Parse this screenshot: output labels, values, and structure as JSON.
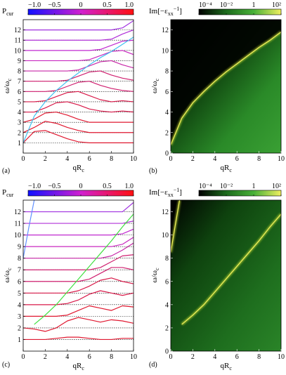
{
  "chart_data": [
    {
      "type": "line",
      "panel_label": "(a)",
      "xlabel": [
        {
          "text": "qR"
        },
        {
          "text": "c",
          "sub": true
        }
      ],
      "ylabel": [
        {
          "text": "ω/ω"
        },
        {
          "text": "c",
          "sub": true
        }
      ],
      "xlim": [
        0,
        10
      ],
      "ylim": [
        0,
        13
      ],
      "xticks": [
        0,
        2,
        4,
        6,
        8,
        10
      ],
      "yticks": [
        1,
        2,
        3,
        4,
        5,
        6,
        7,
        8,
        9,
        10,
        11,
        12
      ],
      "colorbar": {
        "label": [
          {
            "text": "P"
          },
          {
            "text": "cur",
            "sub": true
          }
        ],
        "lim": [
          -1,
          1
        ],
        "log": false,
        "ticks": [
          {
            "value": -1,
            "label": "−1.0"
          },
          {
            "value": -0.5,
            "label": "−0.5"
          },
          0,
          0.5,
          {
            "value": 1,
            "label": "1.0"
          }
        ],
        "colors": [
          "#1010ff",
          "#d020d0",
          "#ff1010"
        ]
      },
      "hlines": [
        1,
        2,
        3,
        4,
        5,
        6,
        7,
        8,
        9,
        10,
        11,
        12
      ],
      "x": [
        0,
        1,
        2,
        3,
        4,
        5,
        6,
        7,
        8,
        9,
        10
      ],
      "series": [
        {
          "color": "#e01830",
          "values": [
            1.0,
            2.1,
            2.2,
            1.8,
            1.4,
            1.1,
            1.0,
            1.0,
            1.0,
            1.0,
            1.0
          ]
        },
        {
          "color": "#e01830",
          "values": [
            2.0,
            2.5,
            3.1,
            2.9,
            2.5,
            2.2,
            2.0,
            2.0,
            2.0,
            2.0,
            2.0
          ]
        },
        {
          "color": "#e01830",
          "values": [
            3.0,
            3.3,
            3.9,
            4.0,
            3.7,
            3.3,
            3.0,
            3.0,
            3.0,
            3.0,
            3.0
          ]
        },
        {
          "color": "#d81848",
          "values": [
            4.0,
            4.0,
            4.4,
            4.9,
            5.0,
            4.7,
            4.3,
            4.1,
            4.0,
            4.1,
            4.0
          ]
        },
        {
          "color": "#d81848",
          "values": [
            5.0,
            5.0,
            5.1,
            5.5,
            5.9,
            6.0,
            5.6,
            5.2,
            5.0,
            5.1,
            5.0
          ]
        },
        {
          "color": "#d02070",
          "values": [
            6.0,
            6.0,
            6.0,
            6.1,
            6.5,
            6.9,
            7.0,
            6.6,
            6.3,
            6.1,
            6.0
          ]
        },
        {
          "color": "#d02070",
          "values": [
            7.0,
            7.0,
            7.0,
            7.0,
            7.1,
            7.5,
            7.9,
            8.0,
            7.6,
            7.3,
            7.1
          ]
        },
        {
          "color": "#c828a8",
          "values": [
            8.0,
            8.0,
            8.0,
            8.0,
            8.0,
            8.1,
            8.5,
            8.9,
            9.0,
            8.6,
            8.3
          ]
        },
        {
          "color": "#c828c0",
          "values": [
            9.0,
            9.0,
            9.0,
            9.0,
            9.0,
            9.0,
            9.1,
            9.5,
            9.9,
            10.0,
            9.6
          ]
        },
        {
          "color": "#c028d0",
          "values": [
            10.0,
            10.0,
            10.0,
            10.0,
            10.0,
            10.0,
            10.0,
            10.1,
            10.5,
            10.9,
            11.0
          ]
        },
        {
          "color": "#b030d8",
          "values": [
            11.0,
            11.0,
            11.0,
            11.0,
            11.0,
            11.0,
            11.0,
            11.0,
            11.1,
            11.6,
            12.0
          ]
        },
        {
          "color": "#a030e0",
          "values": [
            12.0,
            12.0,
            12.0,
            12.0,
            12.0,
            12.0,
            12.0,
            12.0,
            12.0,
            12.2,
            12.9
          ]
        },
        {
          "color": "#40c0f0",
          "values": [
            1.0,
            3.6,
            5.0,
            6.1,
            7.0,
            7.8,
            8.6,
            9.3,
            9.9,
            10.6,
            11.3
          ]
        }
      ]
    },
    {
      "type": "heatmap",
      "panel_label": "(b)",
      "xlabel": [
        {
          "text": "qR"
        },
        {
          "text": "c",
          "sub": true
        }
      ],
      "ylabel": [
        {
          "text": "ω/ω"
        },
        {
          "text": "c",
          "sub": true
        }
      ],
      "xlim": [
        0,
        10
      ],
      "ylim": [
        0,
        13
      ],
      "xticks": [
        0,
        2,
        4,
        6,
        8,
        10
      ],
      "yticks": [
        0,
        2,
        4,
        6,
        8,
        10,
        12
      ],
      "colorbar": {
        "label": [
          {
            "text": "Im[−ε"
          },
          {
            "text": "xx",
            "sub": true
          },
          {
            "text": "−1",
            "sup": true
          },
          {
            "text": "]"
          }
        ],
        "lim": [
          0.0001,
          100
        ],
        "log": true,
        "ticks": [
          {
            "value": 0.0001,
            "label": "10⁻⁴"
          },
          {
            "value": 0.01,
            "label": "10⁻²"
          },
          1,
          {
            "value": 100,
            "label": "10²"
          }
        ],
        "colors": [
          "#000000",
          "#1c6a1c",
          "#48b038",
          "#f0f060"
        ]
      },
      "lines": [
        {
          "x": [
            0,
            1,
            2,
            3,
            4,
            5,
            6,
            7,
            8,
            9,
            10
          ],
          "values": [
            0.8,
            3.4,
            4.9,
            6.0,
            7.0,
            7.9,
            8.7,
            9.5,
            10.3,
            11.0,
            11.8
          ]
        }
      ]
    },
    {
      "type": "line",
      "panel_label": "(c)",
      "xlabel": [
        {
          "text": "qR"
        },
        {
          "text": "c",
          "sub": true
        }
      ],
      "ylabel": [
        {
          "text": "ω/ω"
        },
        {
          "text": "c",
          "sub": true
        }
      ],
      "xlim": [
        0,
        10
      ],
      "ylim": [
        0,
        13
      ],
      "xticks": [
        0,
        2,
        4,
        6,
        8,
        10
      ],
      "yticks": [
        1,
        2,
        3,
        4,
        5,
        6,
        7,
        8,
        9,
        10,
        11,
        12
      ],
      "colorbar": {
        "label": [
          {
            "text": "P"
          },
          {
            "text": "cur",
            "sub": true
          }
        ],
        "lim": [
          -1,
          1
        ],
        "log": false,
        "ticks": [
          {
            "value": -1,
            "label": "−1.0"
          },
          {
            "value": -0.5,
            "label": "−0.5"
          },
          0,
          0.5,
          {
            "value": 1,
            "label": "1.0"
          }
        ],
        "colors": [
          "#1010ff",
          "#d020d0",
          "#ff1010"
        ]
      },
      "hlines": [
        1,
        2,
        3,
        4,
        5,
        6,
        7,
        8,
        9,
        10,
        11,
        12
      ],
      "x": [
        0,
        1,
        2,
        3,
        4,
        5,
        6,
        7,
        8,
        9,
        10
      ],
      "series": [
        {
          "color": "#e01830",
          "values": [
            1.0,
            1.0,
            1.0,
            1.1,
            1.2,
            1.2,
            1.1,
            1.0,
            1.0,
            1.1,
            1.1
          ]
        },
        {
          "color": "#e01830",
          "values": [
            2.0,
            1.9,
            1.7,
            2.0,
            2.6,
            2.9,
            2.7,
            2.5,
            2.7,
            2.6,
            2.4
          ]
        },
        {
          "color": "#e01830",
          "values": [
            3.0,
            3.0,
            3.0,
            3.0,
            3.1,
            3.5,
            3.9,
            3.7,
            3.5,
            3.9,
            3.8
          ]
        },
        {
          "color": "#d81848",
          "values": [
            4.0,
            4.0,
            4.0,
            4.0,
            4.1,
            4.4,
            4.9,
            5.2,
            5.0,
            4.8,
            5.0
          ]
        },
        {
          "color": "#d81848",
          "values": [
            5.0,
            5.0,
            5.0,
            5.0,
            5.0,
            5.2,
            5.6,
            6.1,
            6.3,
            6.0,
            5.8
          ]
        },
        {
          "color": "#d02070",
          "values": [
            6.0,
            6.0,
            6.0,
            6.0,
            6.0,
            6.0,
            6.2,
            6.7,
            7.2,
            7.2,
            7.0
          ]
        },
        {
          "color": "#d02070",
          "values": [
            7.0,
            7.0,
            7.0,
            7.0,
            7.0,
            7.0,
            7.0,
            7.2,
            7.7,
            8.2,
            8.3
          ]
        },
        {
          "color": "#c828a8",
          "values": [
            8.0,
            8.0,
            8.0,
            8.0,
            8.0,
            8.0,
            8.0,
            8.0,
            8.2,
            8.7,
            9.3
          ]
        },
        {
          "color": "#c828c0",
          "values": [
            9.0,
            9.0,
            9.0,
            9.0,
            9.0,
            9.0,
            9.0,
            9.0,
            9.0,
            9.2,
            9.8
          ]
        },
        {
          "color": "#c028d0",
          "values": [
            10.0,
            10.0,
            10.0,
            10.0,
            10.0,
            10.0,
            10.0,
            10.0,
            10.0,
            10.1,
            10.5
          ]
        },
        {
          "color": "#b030d8",
          "values": [
            11.0,
            11.0,
            11.0,
            11.0,
            11.0,
            11.0,
            11.0,
            11.0,
            11.0,
            11.0,
            11.2
          ]
        },
        {
          "color": "#a030e0",
          "values": [
            12.0,
            12.0,
            12.0,
            12.0,
            12.0,
            12.0,
            12.0,
            12.0,
            12.0,
            12.0,
            12.8
          ]
        },
        {
          "color": "#40e040",
          "values": [
            null,
            2.3,
            3.1,
            4.0,
            5.1,
            6.2,
            7.3,
            8.4,
            9.5,
            10.7,
            11.8
          ]
        },
        {
          "color": "#6090ff",
          "x": [
            0,
            0.5,
            1
          ],
          "values": [
            8.0,
            10.6,
            13
          ]
        }
      ]
    },
    {
      "type": "heatmap",
      "panel_label": "(d)",
      "xlabel": [
        {
          "text": "qR"
        },
        {
          "text": "c",
          "sub": true
        }
      ],
      "ylabel": [
        {
          "text": "ω/ω"
        },
        {
          "text": "c",
          "sub": true
        }
      ],
      "xlim": [
        0,
        10
      ],
      "ylim": [
        0,
        13
      ],
      "xticks": [
        0,
        2,
        4,
        6,
        8,
        10
      ],
      "yticks": [
        0,
        2,
        4,
        6,
        8,
        10,
        12
      ],
      "colorbar": {
        "label": [
          {
            "text": "Im[−ε"
          },
          {
            "text": "xx",
            "sub": true
          },
          {
            "text": "−1",
            "sup": true
          },
          {
            "text": "]"
          }
        ],
        "lim": [
          0.0001,
          100
        ],
        "log": true,
        "ticks": [
          {
            "value": 0.0001,
            "label": "10⁻⁴"
          },
          {
            "value": 0.01,
            "label": "10⁻²"
          },
          1,
          {
            "value": 100,
            "label": "10²"
          }
        ],
        "colors": [
          "#000000",
          "#1c6a1c",
          "#48b038",
          "#f0f060"
        ]
      },
      "lines": [
        {
          "x": [
            0,
            0.4,
            0.8
          ],
          "values": [
            8.5,
            10.8,
            13
          ]
        },
        {
          "x": [
            1,
            2,
            3,
            4,
            5,
            6,
            7,
            8,
            9,
            10
          ],
          "values": [
            2.3,
            3.1,
            4.0,
            5.1,
            6.2,
            7.3,
            8.4,
            9.5,
            10.7,
            11.8
          ]
        }
      ]
    }
  ]
}
